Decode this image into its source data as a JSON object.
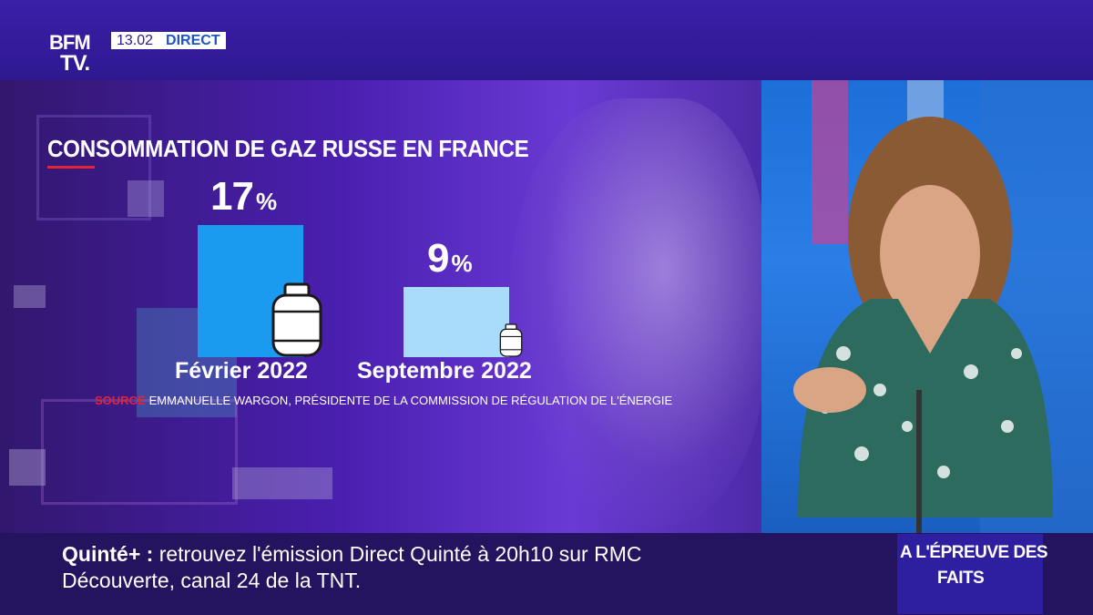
{
  "header": {
    "logo_line1": "BFM",
    "logo_line2": "TV.",
    "time": "13.02",
    "live_label": "DIRECT"
  },
  "chart_data": {
    "type": "bar",
    "title": "CONSOMMATION DE GAZ RUSSE EN FRANCE",
    "categories": [
      "Février 2022",
      "Septembre 2022"
    ],
    "values": [
      17,
      9
    ],
    "value_labels": [
      "17%",
      "9%"
    ],
    "unit": "%",
    "colors": [
      "#1a9bf0",
      "#a8dcfa"
    ],
    "source_label": "SOURCE",
    "source_text": "EMMANUELLE WARGON, PRÉSIDENTE DE LA COMMISSION DE RÉGULATION DE L'ÉNERGIE"
  },
  "icons": [
    "gas-bottle-icon",
    "gas-bottle-small-icon"
  ],
  "ticker": {
    "label": "Quinté+ :",
    "text_line1": " retrouvez l'émission Direct Quinté à 20h10 sur RMC",
    "text_line2": "Découverte, canal 24 de la TNT."
  },
  "program_badge": {
    "line1": "A L'ÉPREUVE DES",
    "line2": "FAITS"
  }
}
